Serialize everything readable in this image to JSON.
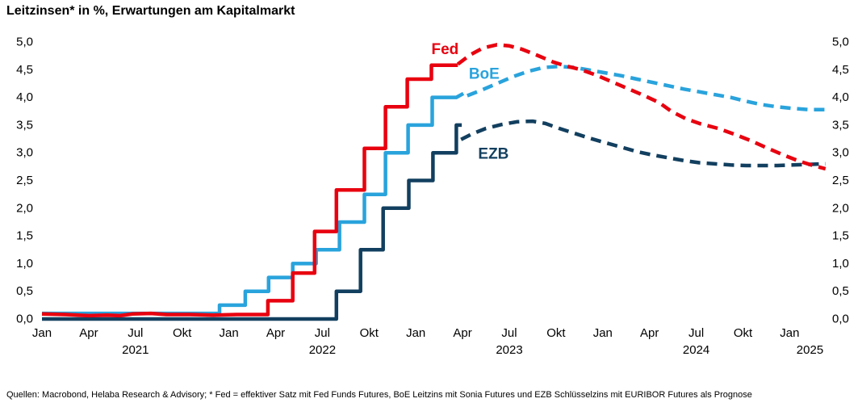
{
  "source_note": "Quellen: Macrobond, Helaba Research & Advisory; * Fed = effektiver Satz mit Fed Funds Futures, BoE Leitzins mit Sonia Futures und EZB Schlüsselzins mit EURIBOR Futures als Prognose",
  "chart_data": {
    "type": "line",
    "title": "Leitzinsen* in %, Erwartungen am Kapitalmarkt",
    "x_unit": "months since Jan 2021",
    "x_range": [
      0,
      50.3
    ],
    "ylim": [
      0,
      5
    ],
    "grid": false,
    "legend_position": "inline-labels",
    "y_axis": {
      "sides": "both",
      "ticks": [
        {
          "value": 0.0,
          "label": "0,0"
        },
        {
          "value": 0.5,
          "label": "0,5"
        },
        {
          "value": 1.0,
          "label": "1,0"
        },
        {
          "value": 1.5,
          "label": "1,5"
        },
        {
          "value": 2.0,
          "label": "2,0"
        },
        {
          "value": 2.5,
          "label": "2,5"
        },
        {
          "value": 3.0,
          "label": "3,0"
        },
        {
          "value": 3.5,
          "label": "3,5"
        },
        {
          "value": 4.0,
          "label": "4,0"
        },
        {
          "value": 4.5,
          "label": "4,5"
        },
        {
          "value": 5.0,
          "label": "5,0"
        }
      ]
    },
    "x_axis": {
      "ticks": [
        {
          "m": 0,
          "label": "Jan"
        },
        {
          "m": 3,
          "label": "Apr"
        },
        {
          "m": 6,
          "label": "Jul"
        },
        {
          "m": 9,
          "label": "Okt"
        },
        {
          "m": 12,
          "label": "Jan"
        },
        {
          "m": 15,
          "label": "Apr"
        },
        {
          "m": 18,
          "label": "Jul"
        },
        {
          "m": 21,
          "label": "Okt"
        },
        {
          "m": 24,
          "label": "Jan"
        },
        {
          "m": 27,
          "label": "Apr"
        },
        {
          "m": 30,
          "label": "Jul"
        },
        {
          "m": 33,
          "label": "Okt"
        },
        {
          "m": 36,
          "label": "Jan"
        },
        {
          "m": 39,
          "label": "Apr"
        },
        {
          "m": 42,
          "label": "Jul"
        },
        {
          "m": 45,
          "label": "Okt"
        },
        {
          "m": 48,
          "label": "Jan"
        }
      ],
      "years": [
        {
          "m": 6,
          "label": "2021"
        },
        {
          "m": 18,
          "label": "2022"
        },
        {
          "m": 30,
          "label": "2023"
        },
        {
          "m": 42,
          "label": "2024"
        },
        {
          "m": 49.3,
          "label": "2025"
        }
      ]
    },
    "series": [
      {
        "name": "EZB",
        "color": "#123f5f",
        "label": {
          "text": "EZB",
          "m": 28.0,
          "v": 2.89
        },
        "solid": [
          [
            0,
            0.0
          ],
          [
            18.9,
            0.0
          ],
          [
            18.9,
            0.5
          ],
          [
            20.45,
            0.5
          ],
          [
            20.45,
            1.25
          ],
          [
            21.9,
            1.25
          ],
          [
            21.9,
            2.0
          ],
          [
            23.55,
            2.0
          ],
          [
            23.55,
            2.5
          ],
          [
            25.1,
            2.5
          ],
          [
            25.1,
            3.0
          ],
          [
            26.6,
            3.0
          ],
          [
            26.6,
            3.5
          ],
          [
            26.95,
            3.5
          ]
        ],
        "dashed": [
          [
            26.9,
            3.24
          ],
          [
            27.6,
            3.34
          ],
          [
            28.5,
            3.44
          ],
          [
            29.5,
            3.51
          ],
          [
            30.5,
            3.56
          ],
          [
            31.5,
            3.57
          ],
          [
            32.3,
            3.53
          ],
          [
            33.2,
            3.44
          ],
          [
            34.2,
            3.35
          ],
          [
            35.2,
            3.26
          ],
          [
            36.2,
            3.18
          ],
          [
            37.2,
            3.1
          ],
          [
            38.2,
            3.02
          ],
          [
            39.2,
            2.96
          ],
          [
            40.2,
            2.91
          ],
          [
            41.2,
            2.86
          ],
          [
            42.2,
            2.82
          ],
          [
            43.2,
            2.8
          ],
          [
            44.2,
            2.78
          ],
          [
            45.2,
            2.77
          ],
          [
            46.2,
            2.77
          ],
          [
            47.2,
            2.77
          ],
          [
            48.2,
            2.78
          ],
          [
            49.2,
            2.79
          ],
          [
            50.3,
            2.8
          ]
        ]
      },
      {
        "name": "BoE",
        "color": "#29a3dc",
        "label": {
          "text": "BoE",
          "m": 27.4,
          "v": 4.34
        },
        "solid": [
          [
            0,
            0.1
          ],
          [
            11.4,
            0.1
          ],
          [
            11.4,
            0.25
          ],
          [
            13.05,
            0.25
          ],
          [
            13.05,
            0.5
          ],
          [
            14.55,
            0.5
          ],
          [
            14.55,
            0.75
          ],
          [
            16.1,
            0.75
          ],
          [
            16.1,
            1.0
          ],
          [
            17.6,
            1.0
          ],
          [
            17.6,
            1.25
          ],
          [
            19.1,
            1.25
          ],
          [
            19.1,
            1.75
          ],
          [
            20.7,
            1.75
          ],
          [
            20.7,
            2.25
          ],
          [
            22.05,
            2.25
          ],
          [
            22.05,
            3.0
          ],
          [
            23.5,
            3.0
          ],
          [
            23.5,
            3.5
          ],
          [
            25.05,
            3.5
          ],
          [
            25.05,
            4.0
          ],
          [
            26.6,
            4.0
          ],
          [
            27.05,
            4.07
          ]
        ],
        "dashed": [
          [
            27.3,
            4.03
          ],
          [
            28.2,
            4.13
          ],
          [
            29.2,
            4.25
          ],
          [
            30.2,
            4.37
          ],
          [
            31.2,
            4.47
          ],
          [
            32.2,
            4.54
          ],
          [
            33.2,
            4.56
          ],
          [
            34.2,
            4.54
          ],
          [
            35.2,
            4.49
          ],
          [
            36.2,
            4.44
          ],
          [
            37.2,
            4.39
          ],
          [
            38.2,
            4.33
          ],
          [
            39.2,
            4.27
          ],
          [
            40.2,
            4.21
          ],
          [
            41.2,
            4.15
          ],
          [
            42.2,
            4.1
          ],
          [
            43.2,
            4.05
          ],
          [
            44.2,
            4.0
          ],
          [
            45.2,
            3.93
          ],
          [
            46.2,
            3.87
          ],
          [
            47.2,
            3.83
          ],
          [
            48.2,
            3.8
          ],
          [
            49.2,
            3.78
          ],
          [
            50.3,
            3.78
          ]
        ]
      },
      {
        "name": "Fed",
        "color": "#e8000f",
        "label": {
          "text": "Fed",
          "m": 25.0,
          "v": 4.78
        },
        "solid": [
          [
            0,
            0.09
          ],
          [
            1.5,
            0.08
          ],
          [
            3,
            0.06
          ],
          [
            4.2,
            0.07
          ],
          [
            5,
            0.06
          ],
          [
            5.8,
            0.09
          ],
          [
            7,
            0.1
          ],
          [
            8,
            0.08
          ],
          [
            9.5,
            0.08
          ],
          [
            11,
            0.07
          ],
          [
            12.5,
            0.08
          ],
          [
            14.5,
            0.08
          ],
          [
            14.5,
            0.33
          ],
          [
            16.1,
            0.33
          ],
          [
            16.1,
            0.83
          ],
          [
            17.5,
            0.83
          ],
          [
            17.5,
            1.58
          ],
          [
            18.9,
            1.58
          ],
          [
            18.9,
            2.33
          ],
          [
            20.7,
            2.33
          ],
          [
            20.7,
            3.08
          ],
          [
            22.05,
            3.08
          ],
          [
            22.05,
            3.83
          ],
          [
            23.45,
            3.83
          ],
          [
            23.45,
            4.33
          ],
          [
            25.0,
            4.33
          ],
          [
            25.0,
            4.58
          ],
          [
            26.7,
            4.58
          ]
        ],
        "dashed": [
          [
            26.7,
            4.6
          ],
          [
            27.5,
            4.77
          ],
          [
            28.3,
            4.89
          ],
          [
            29.2,
            4.95
          ],
          [
            30,
            4.93
          ],
          [
            30.8,
            4.87
          ],
          [
            31.8,
            4.76
          ],
          [
            32.8,
            4.64
          ],
          [
            33.6,
            4.57
          ],
          [
            34.6,
            4.5
          ],
          [
            35.6,
            4.4
          ],
          [
            36.6,
            4.28
          ],
          [
            37.6,
            4.16
          ],
          [
            38.6,
            4.04
          ],
          [
            39.6,
            3.91
          ],
          [
            40.4,
            3.75
          ],
          [
            41.3,
            3.62
          ],
          [
            42.3,
            3.52
          ],
          [
            43.4,
            3.44
          ],
          [
            44.5,
            3.33
          ],
          [
            45.5,
            3.22
          ],
          [
            46.6,
            3.08
          ],
          [
            47.6,
            2.96
          ],
          [
            48.6,
            2.85
          ],
          [
            49.4,
            2.78
          ],
          [
            50.3,
            2.71
          ]
        ]
      }
    ]
  }
}
